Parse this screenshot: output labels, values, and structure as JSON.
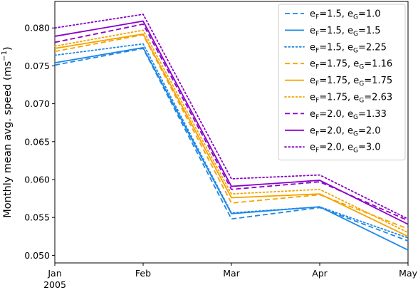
{
  "chart_data": {
    "type": "line",
    "ylabel_main": "Monthly mean avg. speed (ms",
    "ylabel_sup": "−1",
    "ylabel_close": ")",
    "xlabel": "",
    "categories": [
      "Jan",
      "Feb",
      "Mar",
      "Apr",
      "May"
    ],
    "year_label": "2005",
    "ylim": [
      0.049,
      0.0835
    ],
    "yticks": [
      "0.050",
      "0.055",
      "0.060",
      "0.065",
      "0.070",
      "0.075",
      "0.080"
    ],
    "ytick_values": [
      0.05,
      0.055,
      0.06,
      0.065,
      0.07,
      0.075,
      0.08
    ],
    "grid": false,
    "legend_position": "top-right",
    "series": [
      {
        "name": "eF=1.5, eG=1.0",
        "legend": [
          "e",
          "F",
          "=1.5, e",
          "G",
          "=1.0"
        ],
        "color": "#1e88e5",
        "dash": "dashed",
        "values": [
          0.0751,
          0.0773,
          0.0548,
          0.0563,
          0.0519
        ]
      },
      {
        "name": "eF=1.5, eG=1.5",
        "legend": [
          "e",
          "F",
          "=1.5, e",
          "G",
          "=1.5"
        ],
        "color": "#1e88e5",
        "dash": "solid",
        "values": [
          0.0754,
          0.0774,
          0.0555,
          0.0564,
          0.0507
        ]
      },
      {
        "name": "eF=1.5, eG=2.25",
        "legend": [
          "e",
          "F",
          "=1.5, e",
          "G",
          "=2.25"
        ],
        "color": "#1e88e5",
        "dash": "dotted",
        "values": [
          0.0764,
          0.0779,
          0.0556,
          0.0564,
          0.0523
        ]
      },
      {
        "name": "eF=1.75, eG=1.16",
        "legend": [
          "e",
          "F",
          "=1.75, e",
          "G",
          "=1.16"
        ],
        "color": "#f5a300",
        "dash": "dashed",
        "values": [
          0.0769,
          0.0791,
          0.0569,
          0.058,
          0.0535
        ]
      },
      {
        "name": "eF=1.75, eG=1.75",
        "legend": [
          "e",
          "F",
          "=1.75, e",
          "G",
          "=1.75"
        ],
        "color": "#f5a300",
        "dash": "solid",
        "values": [
          0.0773,
          0.0792,
          0.0576,
          0.0581,
          0.0525
        ]
      },
      {
        "name": "eF=1.75, eG=2.63",
        "legend": [
          "e",
          "F",
          "=1.75, e",
          "G",
          "=2.63"
        ],
        "color": "#f5a300",
        "dash": "dotted",
        "values": [
          0.0776,
          0.0797,
          0.0581,
          0.0587,
          0.053
        ]
      },
      {
        "name": "eF=2.0, eG=1.33",
        "legend": [
          "e",
          "F",
          "=2.0, e",
          "G",
          "=1.33"
        ],
        "color": "#8b00c9",
        "dash": "dashed",
        "values": [
          0.0781,
          0.0805,
          0.0587,
          0.0597,
          0.0546
        ]
      },
      {
        "name": "eF=2.0, eG=2.0",
        "legend": [
          "e",
          "F",
          "=2.0, e",
          "G",
          "=2.0"
        ],
        "color": "#8b00c9",
        "dash": "solid",
        "values": [
          0.0789,
          0.0809,
          0.0591,
          0.0599,
          0.0541
        ]
      },
      {
        "name": "eF=2.0, eG=3.0",
        "legend": [
          "e",
          "F",
          "=2.0, e",
          "G",
          "=3.0"
        ],
        "color": "#8b00c9",
        "dash": "dotted",
        "values": [
          0.08,
          0.0818,
          0.0601,
          0.0606,
          0.0548
        ]
      }
    ]
  }
}
